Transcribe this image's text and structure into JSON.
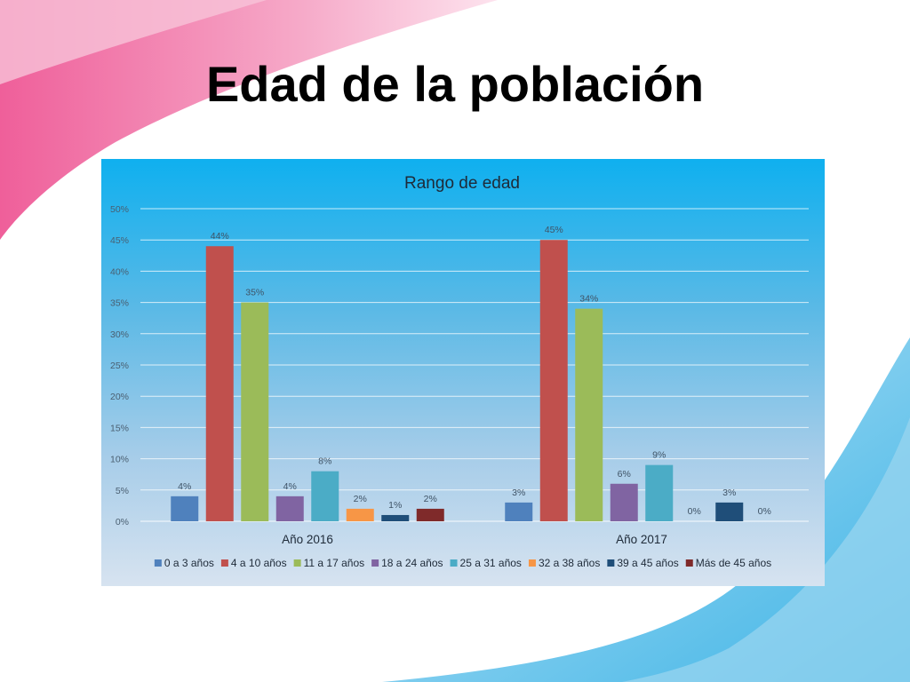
{
  "slide": {
    "title": "Edad de la población"
  },
  "colors": {
    "series": [
      "#4f81bd",
      "#c0504d",
      "#9bbb59",
      "#8064a2",
      "#4bacc6",
      "#f79646",
      "#1f4e79",
      "#7f2a2a"
    ]
  },
  "chart_data": {
    "type": "bar",
    "title": "Rango de edad",
    "xlabel": "",
    "ylabel": "",
    "ylim": [
      0,
      50
    ],
    "yticks": [
      "0%",
      "5%",
      "10%",
      "15%",
      "20%",
      "25%",
      "30%",
      "35%",
      "40%",
      "45%",
      "50%"
    ],
    "grid": true,
    "legend": "bottom",
    "categories": [
      "Año 2016",
      "Año 2017"
    ],
    "series": [
      {
        "name": "0 a 3 años",
        "values": [
          4,
          3
        ],
        "labels": [
          "4%",
          "3%"
        ]
      },
      {
        "name": "4 a 10 años",
        "values": [
          44,
          45
        ],
        "labels": [
          "44%",
          "45%"
        ]
      },
      {
        "name": "11 a 17 años",
        "values": [
          35,
          34
        ],
        "labels": [
          "35%",
          "34%"
        ]
      },
      {
        "name": "18 a 24 años",
        "values": [
          4,
          6
        ],
        "labels": [
          "4%",
          "6%"
        ]
      },
      {
        "name": "25 a 31 años",
        "values": [
          8,
          9
        ],
        "labels": [
          "8%",
          "9%"
        ]
      },
      {
        "name": "32 a 38 años",
        "values": [
          2,
          0
        ],
        "labels": [
          "2%",
          "0%"
        ]
      },
      {
        "name": "39 a 45 años",
        "values": [
          1,
          3
        ],
        "labels": [
          "1%",
          "3%"
        ]
      },
      {
        "name": "Más de 45 años",
        "values": [
          2,
          0
        ],
        "labels": [
          "2%",
          "0%"
        ]
      }
    ]
  }
}
